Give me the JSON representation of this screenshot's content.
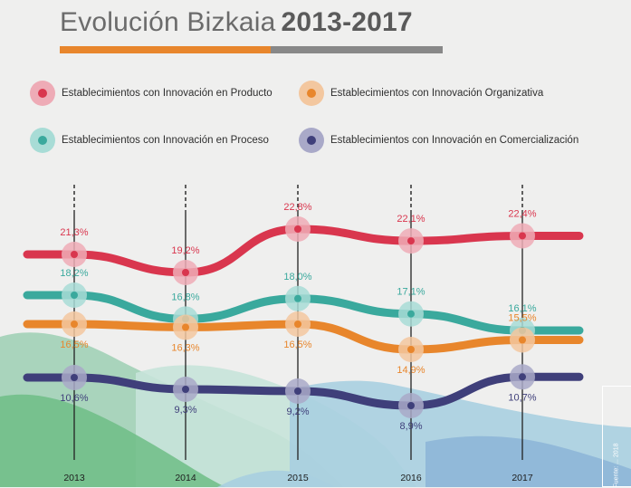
{
  "header": {
    "title_light": "Evolución Bizkaia",
    "title_bold": "2013-2017"
  },
  "colors": {
    "producto": "#d9364e",
    "organizativa": "#e8862c",
    "proceso": "#3aa99d",
    "comercializacion": "#3f3f7a",
    "title_bar_accent": "#e8862c",
    "title_bar_rest": "#888888"
  },
  "legend": [
    {
      "label": "Establecimientos con Innovación en Producto",
      "color": "#d9364e",
      "glow": "#eeabb6"
    },
    {
      "label": "Establecimientos con Innovación Organizativa",
      "color": "#e8862c",
      "glow": "#f3c79f"
    },
    {
      "label": "Establecimientos con Innovación en Proceso",
      "color": "#3aa99d",
      "glow": "#a8dcd6"
    },
    {
      "label": "Establecimientos con Innovación en Comercialización",
      "color": "#3f3f7a",
      "glow": "#a9a9c8"
    }
  ],
  "source_note": "Fuente: ... 2018",
  "chart_data": {
    "type": "line",
    "categories": [
      "2013",
      "2014",
      "2015",
      "2016",
      "2017"
    ],
    "series": [
      {
        "name": "Establecimientos con Innovación en Producto",
        "values": [
          21.3,
          19.2,
          22.8,
          22.1,
          22.4
        ],
        "labels": [
          "21,3%",
          "19,2%",
          "22,8%",
          "22,1%",
          "22,4%"
        ],
        "color": "#d9364e",
        "glow": "#eeabb6",
        "label_pos": "above"
      },
      {
        "name": "Establecimientos con Innovación en Proceso",
        "values": [
          18.2,
          16.8,
          18.0,
          17.1,
          16.1
        ],
        "labels": [
          "18,2%",
          "16,8%",
          "18,0%",
          "17,1%",
          "16,1%"
        ],
        "color": "#3aa99d",
        "glow": "#a8dcd6",
        "label_pos": "above"
      },
      {
        "name": "Establecimientos con Innovación Organizativa",
        "values": [
          16.5,
          16.3,
          16.5,
          14.9,
          15.5
        ],
        "labels": [
          "16,5%",
          "16,3%",
          "16,5%",
          "14,9%",
          "15,5%"
        ],
        "color": "#e8862c",
        "glow": "#f3c79f",
        "label_pos": "mixed"
      },
      {
        "name": "Establecimientos con Innovación en Comercialización",
        "values": [
          10.6,
          9.3,
          9.2,
          8.9,
          10.7
        ],
        "labels": [
          "10,6%",
          "9,3%",
          "9,2%",
          "8,9%",
          "10,7%"
        ],
        "color": "#3f3f7a",
        "glow": "#a9a9c8",
        "label_pos": "below"
      }
    ],
    "xlabel": "",
    "ylabel": "",
    "grid": false,
    "legend_placement": "top"
  }
}
